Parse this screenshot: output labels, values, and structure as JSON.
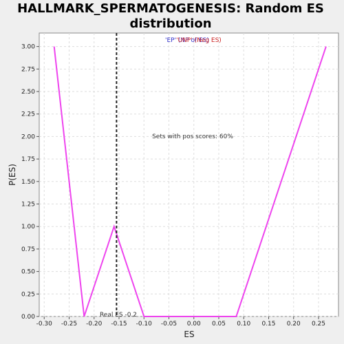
{
  "chart_data": {
    "type": "line",
    "title_line1": "HALLMARK_SPERMATOGENESIS: Random ES",
    "title_line2": "distribution",
    "xlabel": "ES",
    "ylabel": "P(ES)",
    "xlim": [
      -0.31,
      0.29
    ],
    "ylim": [
      0,
      3.15
    ],
    "x_ticks": [
      "-0.30",
      "-0.25",
      "-0.20",
      "-0.15",
      "-0.10",
      "-0.05",
      "0.00",
      "0.05",
      "0.10",
      "0.15",
      "0.20",
      "0.25"
    ],
    "y_ticks": [
      "0.00",
      "0.25",
      "0.50",
      "0.75",
      "1.00",
      "1.25",
      "1.50",
      "1.75",
      "2.00",
      "2.25",
      "2.50",
      "2.75",
      "3.00"
    ],
    "grid": true,
    "series": [
      {
        "color": "#ee44ee",
        "x": [
          -0.28,
          -0.22,
          -0.16,
          -0.1,
          0.085,
          0.145,
          0.205,
          0.265
        ],
        "y": [
          3.0,
          0.0,
          1.0,
          0.0,
          0.0,
          1.0,
          2.0,
          3.0
        ]
      }
    ],
    "real_es": -0.155,
    "real_es_label": "Real ES -0.2",
    "pos_scores_label": "Sets with pos scores: 60%",
    "legend_ep": "'EP' (NP of ES)",
    "legend_neg": "'UNP' (Neg ES)"
  }
}
